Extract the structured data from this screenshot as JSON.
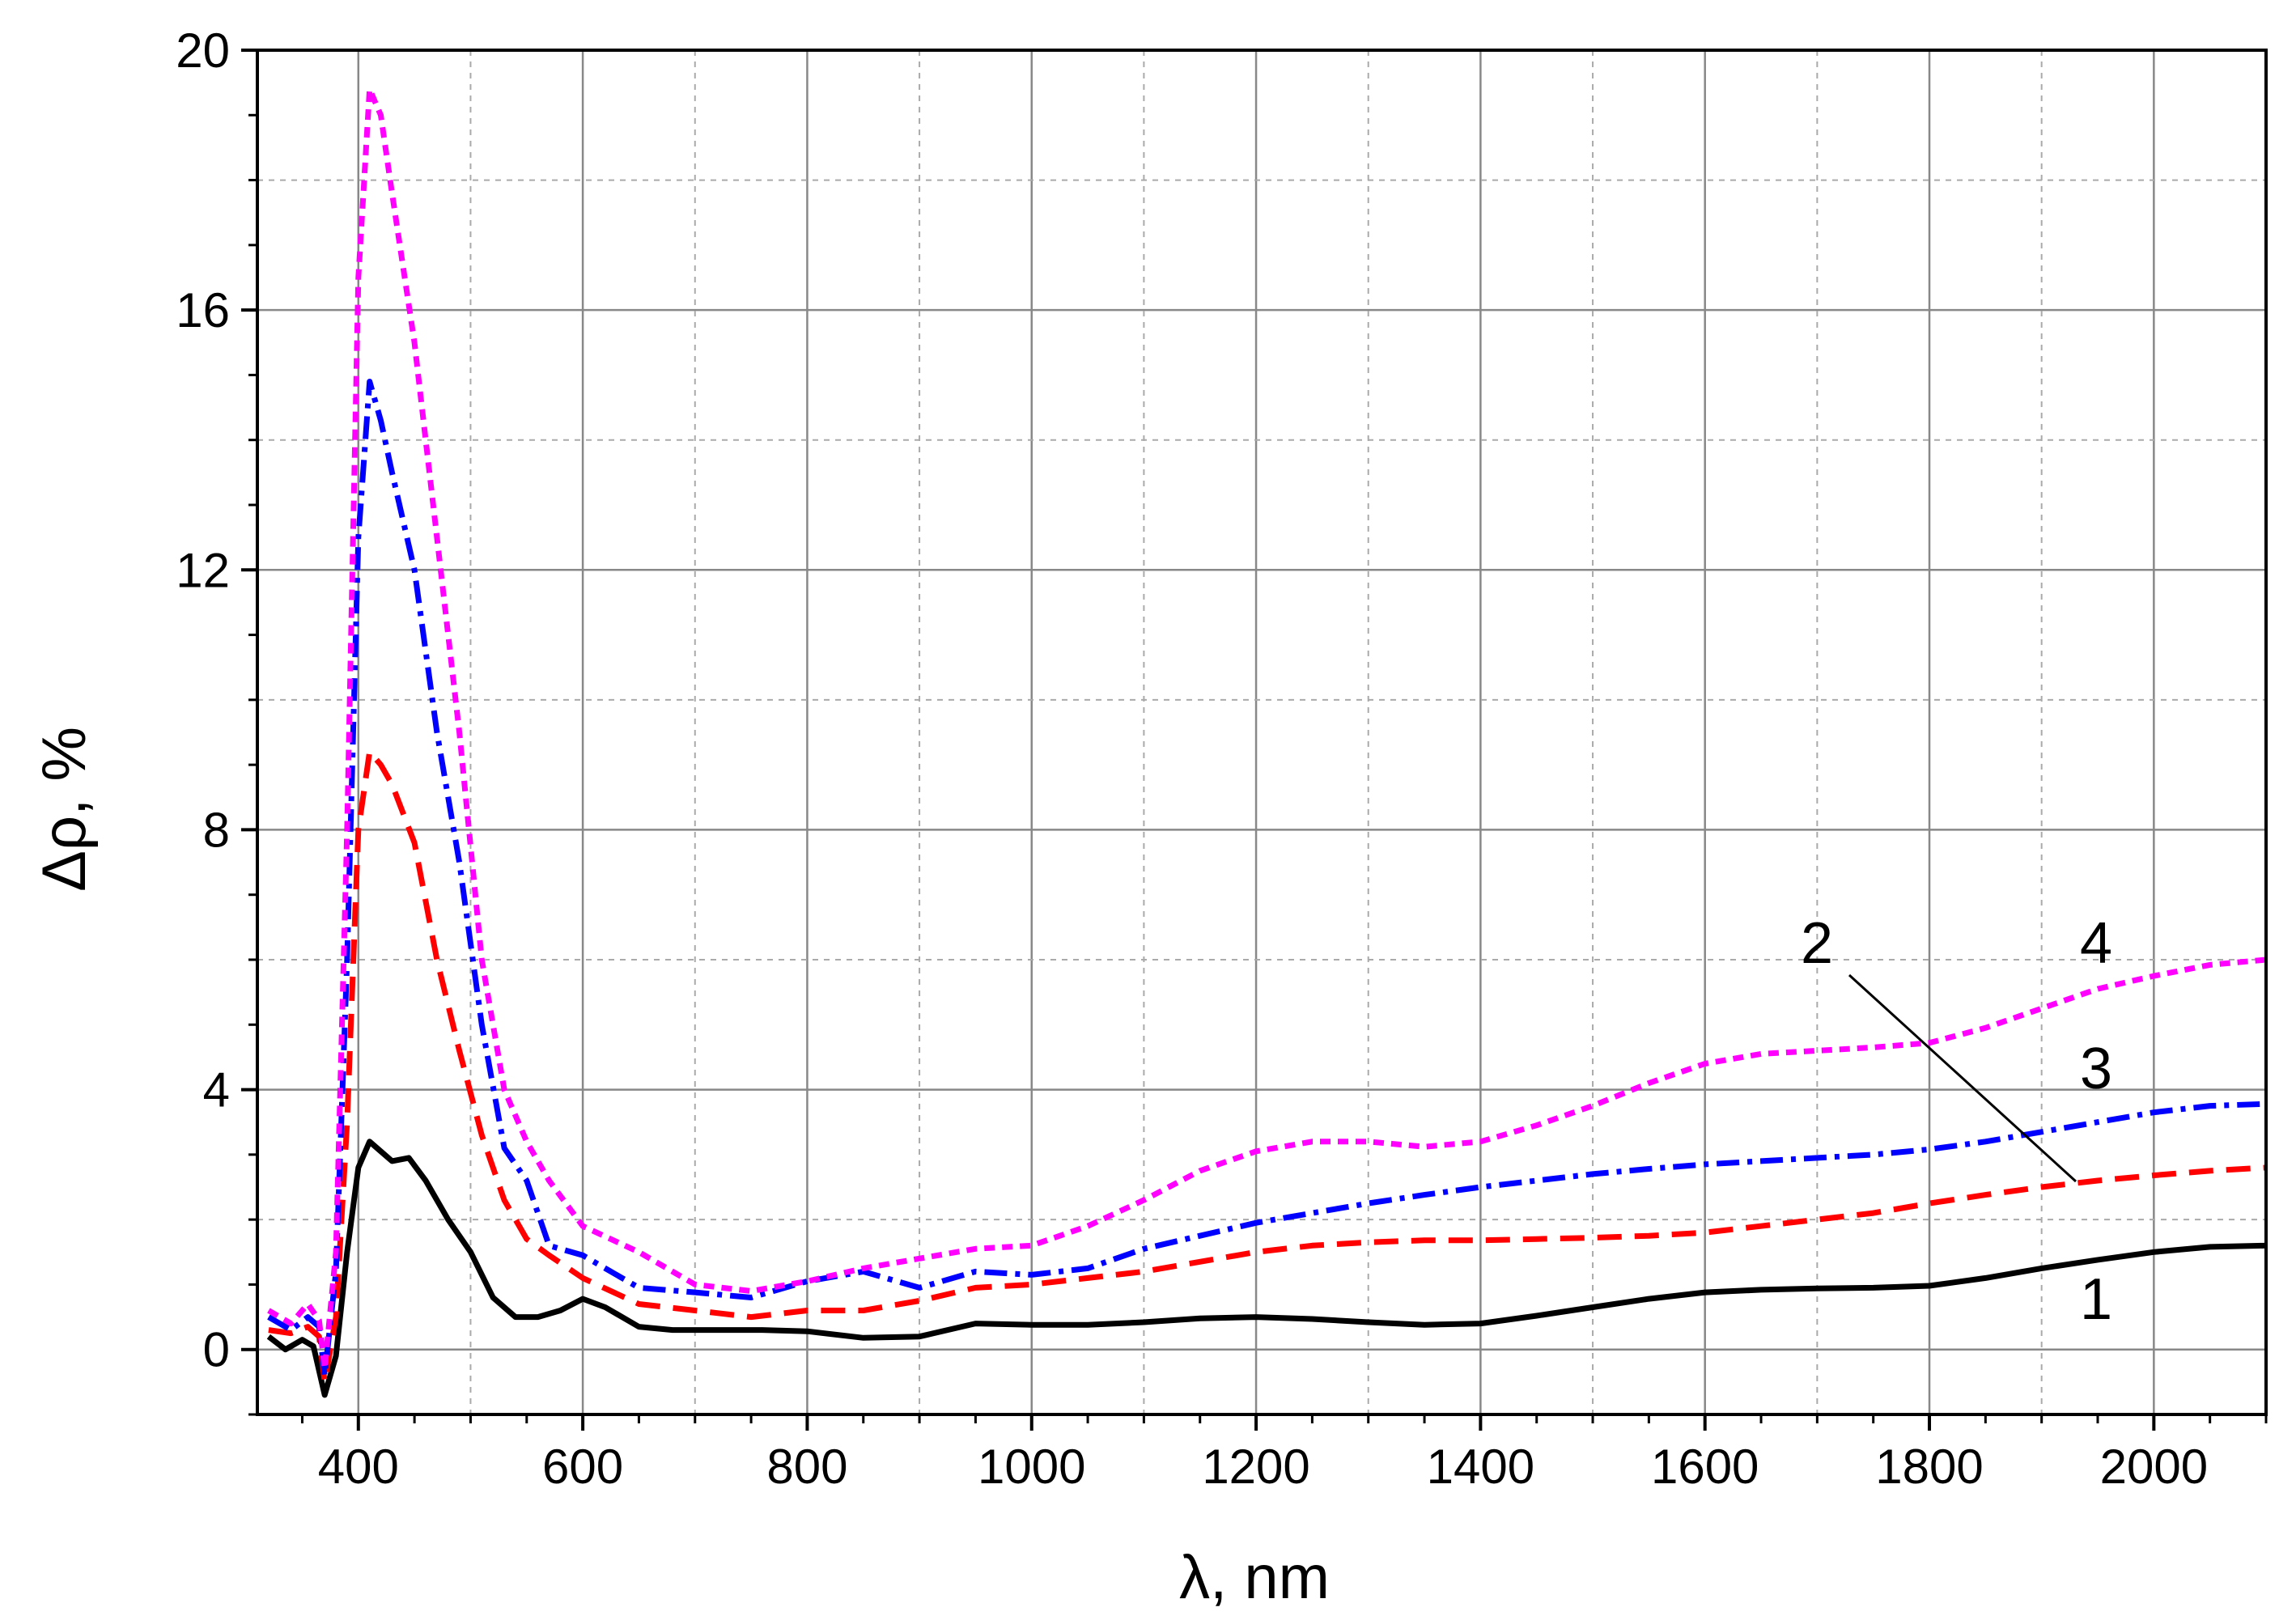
{
  "chart_data": {
    "type": "line",
    "xlabel": "λ, nm",
    "ylabel": "Δρ, %",
    "xlim": [
      310,
      2100
    ],
    "ylim": [
      -1,
      20
    ],
    "x_ticks": [
      400,
      600,
      800,
      1000,
      1200,
      1400,
      1600,
      1800,
      2000
    ],
    "y_ticks": [
      0,
      4,
      8,
      12,
      16,
      20
    ],
    "x_tick_labels": [
      "400",
      "600",
      "800",
      "1000",
      "1200",
      "1400",
      "1600",
      "1800",
      "2000"
    ],
    "y_tick_labels": [
      "0",
      "4",
      "8",
      "12",
      "16",
      "20"
    ],
    "grid": true,
    "series": [
      {
        "name": "1",
        "color": "#000000",
        "style": "solid",
        "points": [
          [
            320,
            0.2
          ],
          [
            335,
            0.0
          ],
          [
            350,
            0.15
          ],
          [
            360,
            0.05
          ],
          [
            370,
            -0.7
          ],
          [
            380,
            -0.1
          ],
          [
            390,
            1.5
          ],
          [
            400,
            2.8
          ],
          [
            410,
            3.2
          ],
          [
            420,
            3.05
          ],
          [
            430,
            2.9
          ],
          [
            445,
            2.95
          ],
          [
            460,
            2.6
          ],
          [
            480,
            2.0
          ],
          [
            500,
            1.5
          ],
          [
            520,
            0.8
          ],
          [
            540,
            0.5
          ],
          [
            560,
            0.5
          ],
          [
            580,
            0.6
          ],
          [
            600,
            0.78
          ],
          [
            620,
            0.65
          ],
          [
            650,
            0.35
          ],
          [
            680,
            0.3
          ],
          [
            720,
            0.3
          ],
          [
            760,
            0.3
          ],
          [
            800,
            0.28
          ],
          [
            850,
            0.18
          ],
          [
            900,
            0.2
          ],
          [
            950,
            0.4
          ],
          [
            1000,
            0.38
          ],
          [
            1050,
            0.38
          ],
          [
            1100,
            0.42
          ],
          [
            1150,
            0.48
          ],
          [
            1200,
            0.5
          ],
          [
            1250,
            0.47
          ],
          [
            1300,
            0.42
          ],
          [
            1350,
            0.38
          ],
          [
            1400,
            0.4
          ],
          [
            1450,
            0.52
          ],
          [
            1500,
            0.65
          ],
          [
            1550,
            0.78
          ],
          [
            1600,
            0.88
          ],
          [
            1650,
            0.92
          ],
          [
            1700,
            0.94
          ],
          [
            1750,
            0.95
          ],
          [
            1800,
            0.98
          ],
          [
            1850,
            1.1
          ],
          [
            1900,
            1.25
          ],
          [
            1950,
            1.38
          ],
          [
            2000,
            1.5
          ],
          [
            2050,
            1.58
          ],
          [
            2100,
            1.6
          ]
        ]
      },
      {
        "name": "2",
        "color": "#ff0000",
        "style": "dashed",
        "points": [
          [
            320,
            0.3
          ],
          [
            340,
            0.25
          ],
          [
            355,
            0.35
          ],
          [
            365,
            0.2
          ],
          [
            370,
            -0.5
          ],
          [
            380,
            0.5
          ],
          [
            390,
            3.5
          ],
          [
            400,
            8.0
          ],
          [
            410,
            9.2
          ],
          [
            420,
            9.0
          ],
          [
            430,
            8.7
          ],
          [
            450,
            7.8
          ],
          [
            470,
            6.0
          ],
          [
            490,
            4.6
          ],
          [
            510,
            3.3
          ],
          [
            530,
            2.3
          ],
          [
            550,
            1.7
          ],
          [
            570,
            1.45
          ],
          [
            600,
            1.1
          ],
          [
            650,
            0.7
          ],
          [
            700,
            0.6
          ],
          [
            750,
            0.5
          ],
          [
            800,
            0.6
          ],
          [
            850,
            0.6
          ],
          [
            900,
            0.75
          ],
          [
            950,
            0.95
          ],
          [
            1000,
            1.0
          ],
          [
            1050,
            1.1
          ],
          [
            1100,
            1.2
          ],
          [
            1150,
            1.35
          ],
          [
            1200,
            1.5
          ],
          [
            1250,
            1.6
          ],
          [
            1300,
            1.65
          ],
          [
            1350,
            1.68
          ],
          [
            1400,
            1.68
          ],
          [
            1450,
            1.7
          ],
          [
            1500,
            1.72
          ],
          [
            1550,
            1.75
          ],
          [
            1600,
            1.8
          ],
          [
            1650,
            1.9
          ],
          [
            1700,
            2.0
          ],
          [
            1750,
            2.1
          ],
          [
            1800,
            2.25
          ],
          [
            1850,
            2.38
          ],
          [
            1900,
            2.5
          ],
          [
            1950,
            2.6
          ],
          [
            2000,
            2.68
          ],
          [
            2050,
            2.75
          ],
          [
            2100,
            2.8
          ]
        ]
      },
      {
        "name": "3",
        "color": "#0000ff",
        "style": "dashdot",
        "points": [
          [
            320,
            0.5
          ],
          [
            340,
            0.3
          ],
          [
            355,
            0.5
          ],
          [
            365,
            0.35
          ],
          [
            370,
            -0.4
          ],
          [
            380,
            1.2
          ],
          [
            390,
            6.0
          ],
          [
            400,
            12.5
          ],
          [
            410,
            14.9
          ],
          [
            420,
            14.3
          ],
          [
            430,
            13.5
          ],
          [
            450,
            12.0
          ],
          [
            470,
            9.5
          ],
          [
            490,
            7.5
          ],
          [
            510,
            5.0
          ],
          [
            530,
            3.1
          ],
          [
            550,
            2.6
          ],
          [
            570,
            1.6
          ],
          [
            600,
            1.45
          ],
          [
            650,
            0.95
          ],
          [
            700,
            0.88
          ],
          [
            750,
            0.8
          ],
          [
            800,
            1.05
          ],
          [
            850,
            1.2
          ],
          [
            900,
            0.95
          ],
          [
            950,
            1.2
          ],
          [
            1000,
            1.15
          ],
          [
            1050,
            1.25
          ],
          [
            1100,
            1.55
          ],
          [
            1150,
            1.75
          ],
          [
            1200,
            1.95
          ],
          [
            1250,
            2.1
          ],
          [
            1300,
            2.25
          ],
          [
            1350,
            2.38
          ],
          [
            1400,
            2.5
          ],
          [
            1450,
            2.6
          ],
          [
            1500,
            2.7
          ],
          [
            1550,
            2.78
          ],
          [
            1600,
            2.85
          ],
          [
            1650,
            2.9
          ],
          [
            1700,
            2.95
          ],
          [
            1750,
            3.0
          ],
          [
            1800,
            3.08
          ],
          [
            1850,
            3.2
          ],
          [
            1900,
            3.35
          ],
          [
            1950,
            3.5
          ],
          [
            2000,
            3.65
          ],
          [
            2050,
            3.75
          ],
          [
            2100,
            3.78
          ]
        ]
      },
      {
        "name": "4",
        "color": "#ff00ff",
        "style": "dotted",
        "points": [
          [
            320,
            0.6
          ],
          [
            340,
            0.4
          ],
          [
            355,
            0.7
          ],
          [
            365,
            0.45
          ],
          [
            370,
            -0.3
          ],
          [
            380,
            1.5
          ],
          [
            390,
            8.0
          ],
          [
            400,
            16.5
          ],
          [
            410,
            19.4
          ],
          [
            420,
            19.0
          ],
          [
            430,
            17.8
          ],
          [
            450,
            15.5
          ],
          [
            470,
            12.5
          ],
          [
            490,
            9.5
          ],
          [
            510,
            6.0
          ],
          [
            530,
            4.0
          ],
          [
            550,
            3.2
          ],
          [
            570,
            2.6
          ],
          [
            600,
            1.9
          ],
          [
            650,
            1.5
          ],
          [
            700,
            1.0
          ],
          [
            750,
            0.9
          ],
          [
            800,
            1.05
          ],
          [
            850,
            1.25
          ],
          [
            900,
            1.4
          ],
          [
            950,
            1.55
          ],
          [
            1000,
            1.6
          ],
          [
            1050,
            1.9
          ],
          [
            1100,
            2.3
          ],
          [
            1150,
            2.75
          ],
          [
            1200,
            3.05
          ],
          [
            1250,
            3.2
          ],
          [
            1300,
            3.2
          ],
          [
            1350,
            3.12
          ],
          [
            1400,
            3.2
          ],
          [
            1450,
            3.45
          ],
          [
            1500,
            3.75
          ],
          [
            1550,
            4.1
          ],
          [
            1600,
            4.4
          ],
          [
            1650,
            4.55
          ],
          [
            1700,
            4.6
          ],
          [
            1750,
            4.65
          ],
          [
            1800,
            4.72
          ],
          [
            1850,
            4.95
          ],
          [
            1900,
            5.25
          ],
          [
            1950,
            5.55
          ],
          [
            2000,
            5.75
          ],
          [
            2050,
            5.92
          ],
          [
            2100,
            6.0
          ]
        ]
      }
    ]
  }
}
